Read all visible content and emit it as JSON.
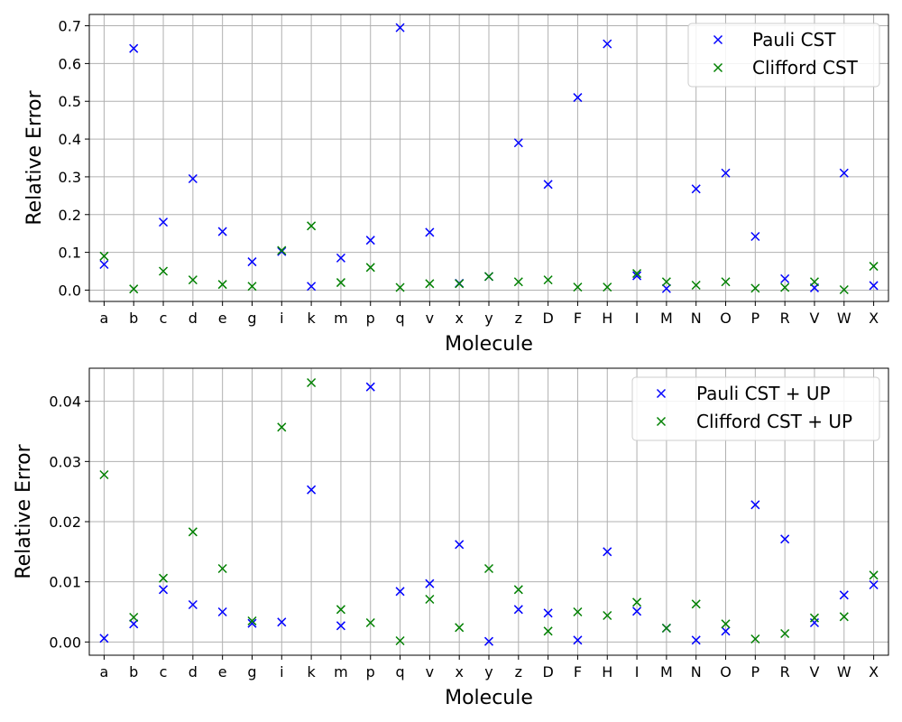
{
  "chart_data": [
    {
      "type": "scatter",
      "marker": "x",
      "xlabel": "Molecule",
      "ylabel": "Relative Error",
      "ylim": [
        -0.03,
        0.73
      ],
      "yticks": [
        0.0,
        0.1,
        0.2,
        0.3,
        0.4,
        0.5,
        0.6,
        0.7
      ],
      "ytick_labels": [
        "0.0",
        "0.1",
        "0.2",
        "0.3",
        "0.4",
        "0.5",
        "0.6",
        "0.7"
      ],
      "grid": true,
      "legend_position": "top-right",
      "categories": [
        "a",
        "b",
        "c",
        "d",
        "e",
        "g",
        "i",
        "k",
        "m",
        "p",
        "q",
        "v",
        "x",
        "y",
        "z",
        "D",
        "F",
        "H",
        "I",
        "M",
        "N",
        "O",
        "P",
        "R",
        "V",
        "W",
        "X"
      ],
      "series": [
        {
          "name": "Pauli CST",
          "color": "#0000ff",
          "values": [
            0.068,
            0.64,
            0.18,
            0.295,
            0.155,
            0.075,
            0.102,
            0.01,
            0.085,
            0.132,
            0.695,
            0.153,
            0.018,
            0.036,
            0.39,
            0.28,
            0.51,
            0.652,
            0.038,
            0.004,
            0.268,
            0.31,
            0.142,
            0.03,
            0.006,
            0.31,
            0.012
          ]
        },
        {
          "name": "Clifford CST",
          "color": "#008000",
          "values": [
            0.09,
            0.003,
            0.05,
            0.027,
            0.015,
            0.01,
            0.105,
            0.17,
            0.02,
            0.06,
            0.007,
            0.017,
            0.017,
            0.036,
            0.022,
            0.027,
            0.008,
            0.008,
            0.044,
            0.022,
            0.013,
            0.022,
            0.005,
            0.007,
            0.022,
            0.001,
            0.063
          ]
        }
      ]
    },
    {
      "type": "scatter",
      "marker": "x",
      "xlabel": "Molecule",
      "ylabel": "Relative Error",
      "ylim": [
        -0.0022,
        0.0455
      ],
      "yticks": [
        0.0,
        0.01,
        0.02,
        0.03,
        0.04
      ],
      "ytick_labels": [
        "0.00",
        "0.01",
        "0.02",
        "0.03",
        "0.04"
      ],
      "grid": true,
      "legend_position": "top-right",
      "categories": [
        "a",
        "b",
        "c",
        "d",
        "e",
        "g",
        "i",
        "k",
        "m",
        "p",
        "q",
        "v",
        "x",
        "y",
        "z",
        "D",
        "F",
        "H",
        "I",
        "M",
        "N",
        "O",
        "P",
        "R",
        "V",
        "W",
        "X"
      ],
      "series": [
        {
          "name": "Pauli CST + UP",
          "color": "#0000ff",
          "values": [
            0.0006,
            0.003,
            0.0087,
            0.0062,
            0.005,
            0.0031,
            0.0033,
            0.0253,
            0.0027,
            0.0424,
            0.0084,
            0.0097,
            0.0162,
            0.0001,
            0.0054,
            0.0048,
            0.0003,
            0.015,
            0.0051,
            0.0023,
            0.0003,
            0.0018,
            0.0228,
            0.0171,
            0.0032,
            0.0078,
            0.0095
          ]
        },
        {
          "name": "Clifford CST + UP",
          "color": "#008000",
          "values": [
            0.0278,
            0.0041,
            0.0106,
            0.0183,
            0.0122,
            0.0035,
            0.0357,
            0.0431,
            0.0054,
            0.0032,
            0.0002,
            0.0071,
            0.0024,
            0.0122,
            0.0087,
            0.0018,
            0.005,
            0.0044,
            0.0066,
            0.0023,
            0.0063,
            0.003,
            0.0005,
            0.0014,
            0.004,
            0.0042,
            0.0111
          ]
        }
      ]
    }
  ]
}
